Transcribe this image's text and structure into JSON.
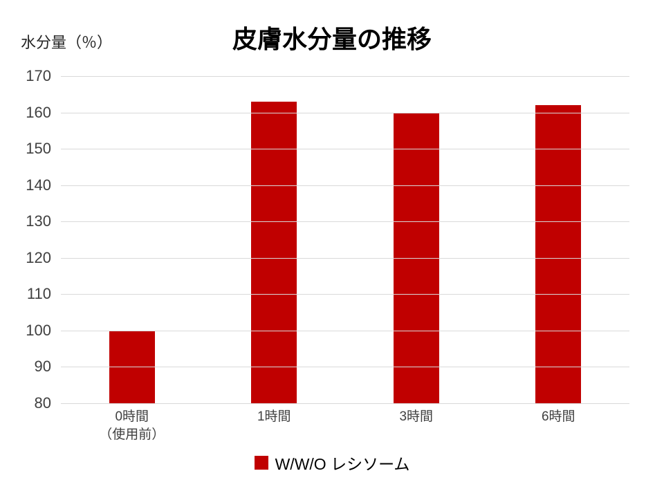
{
  "chart_data": {
    "type": "bar",
    "title": "皮膚水分量の推移",
    "ylabel": "水分量（％）",
    "categories": [
      {
        "label": "0時間",
        "sublabel": "（使用前）"
      },
      {
        "label": "1時間",
        "sublabel": ""
      },
      {
        "label": "3時間",
        "sublabel": ""
      },
      {
        "label": "6時間",
        "sublabel": ""
      }
    ],
    "values": [
      100,
      163,
      160,
      162
    ],
    "ylim": [
      80,
      170
    ],
    "yticks": [
      80,
      90,
      100,
      110,
      120,
      130,
      140,
      150,
      160,
      170
    ],
    "grid": true,
    "bar_color": "#c00000",
    "gridline_color": "#d9d9d9",
    "legend": {
      "label": "W/W/O レシソーム",
      "position": "bottom"
    }
  }
}
